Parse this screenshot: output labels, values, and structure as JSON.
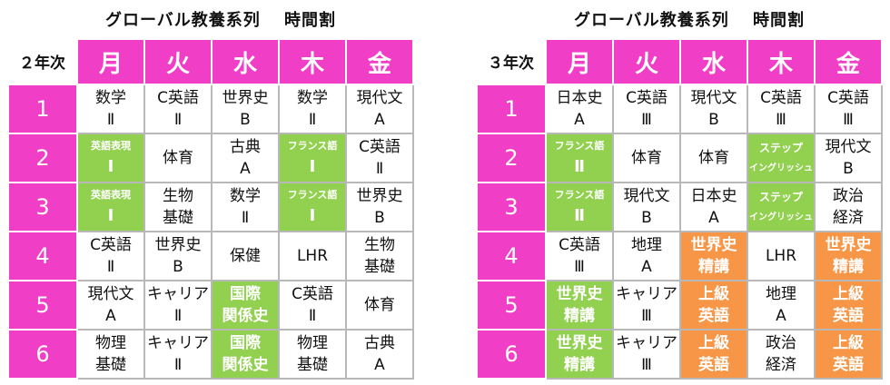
{
  "panels": [
    {
      "title": "グローバル教養系列　 時間割",
      "year": "２年次",
      "days": [
        "月",
        "火",
        "水",
        "木",
        "金"
      ],
      "rows": [
        {
          "period": "1",
          "cells": [
            {
              "l1": "数学",
              "l2": "Ⅱ",
              "style": "plain"
            },
            {
              "l1": "C英語",
              "l2": "Ⅱ",
              "style": "plain"
            },
            {
              "l1": "世界史",
              "l2": "B",
              "style": "plain"
            },
            {
              "l1": "数学",
              "l2": "Ⅱ",
              "style": "plain"
            },
            {
              "l1": "現代文",
              "l2": "A",
              "style": "plain"
            }
          ]
        },
        {
          "period": "2",
          "cells": [
            {
              "l1": "英語表現",
              "l2": "Ⅰ",
              "style": "green-small"
            },
            {
              "l1": "体育",
              "l2": "",
              "style": "plain"
            },
            {
              "l1": "古典",
              "l2": "A",
              "style": "plain"
            },
            {
              "l1": "フランス語",
              "l2": "Ⅰ",
              "style": "green-small"
            },
            {
              "l1": "C英語",
              "l2": "Ⅱ",
              "style": "plain"
            }
          ]
        },
        {
          "period": "3",
          "cells": [
            {
              "l1": "英語表現",
              "l2": "Ⅰ",
              "style": "green-small"
            },
            {
              "l1": "生物",
              "l2": "基礎",
              "style": "plain"
            },
            {
              "l1": "数学",
              "l2": "Ⅱ",
              "style": "plain"
            },
            {
              "l1": "フランス語",
              "l2": "Ⅰ",
              "style": "green-small"
            },
            {
              "l1": "世界史",
              "l2": "B",
              "style": "plain"
            }
          ]
        },
        {
          "period": "4",
          "cells": [
            {
              "l1": "C英語",
              "l2": "Ⅱ",
              "style": "plain"
            },
            {
              "l1": "世界史",
              "l2": "B",
              "style": "plain"
            },
            {
              "l1": "保健",
              "l2": "",
              "style": "plain"
            },
            {
              "l1": "LHR",
              "l2": "",
              "style": "plain"
            },
            {
              "l1": "生物",
              "l2": "基礎",
              "style": "plain"
            }
          ]
        },
        {
          "period": "5",
          "cells": [
            {
              "l1": "現代文",
              "l2": "A",
              "style": "plain"
            },
            {
              "l1": "キャリア",
              "l2": "Ⅱ",
              "style": "plain"
            },
            {
              "l1": "国際",
              "l2": "関係史",
              "style": "green"
            },
            {
              "l1": "C英語",
              "l2": "Ⅱ",
              "style": "plain"
            },
            {
              "l1": "体育",
              "l2": "",
              "style": "plain"
            }
          ]
        },
        {
          "period": "6",
          "cells": [
            {
              "l1": "物理",
              "l2": "基礎",
              "style": "plain"
            },
            {
              "l1": "キャリア",
              "l2": "Ⅱ",
              "style": "plain"
            },
            {
              "l1": "国際",
              "l2": "関係史",
              "style": "green"
            },
            {
              "l1": "物理",
              "l2": "基礎",
              "style": "plain"
            },
            {
              "l1": "古典",
              "l2": "A",
              "style": "plain"
            }
          ]
        }
      ]
    },
    {
      "title": "グローバル教養系列　 時間割",
      "year": "３年次",
      "days": [
        "月",
        "火",
        "水",
        "木",
        "金"
      ],
      "rows": [
        {
          "period": "1",
          "cells": [
            {
              "l1": "日本史",
              "l2": "A",
              "style": "plain"
            },
            {
              "l1": "C英語",
              "l2": "Ⅲ",
              "style": "plain"
            },
            {
              "l1": "現代文",
              "l2": "B",
              "style": "plain"
            },
            {
              "l1": "C英語",
              "l2": "Ⅲ",
              "style": "plain"
            },
            {
              "l1": "C英語",
              "l2": "Ⅲ",
              "style": "plain"
            }
          ]
        },
        {
          "period": "2",
          "cells": [
            {
              "l1": "フランス語",
              "l2": "Ⅱ",
              "style": "green-small"
            },
            {
              "l1": "体育",
              "l2": "",
              "style": "plain"
            },
            {
              "l1": "体育",
              "l2": "",
              "style": "plain"
            },
            {
              "l1": "ステップ",
              "l2": "イングリッシュ",
              "style": "green-tiny"
            },
            {
              "l1": "現代文",
              "l2": "B",
              "style": "plain"
            }
          ]
        },
        {
          "period": "3",
          "cells": [
            {
              "l1": "フランス語",
              "l2": "Ⅱ",
              "style": "green-small"
            },
            {
              "l1": "現代文",
              "l2": "B",
              "style": "plain"
            },
            {
              "l1": "日本史",
              "l2": "A",
              "style": "plain"
            },
            {
              "l1": "ステップ",
              "l2": "イングリッシュ",
              "style": "green-tiny"
            },
            {
              "l1": "政治",
              "l2": "経済",
              "style": "plain"
            }
          ]
        },
        {
          "period": "4",
          "cells": [
            {
              "l1": "C英語",
              "l2": "Ⅲ",
              "style": "plain"
            },
            {
              "l1": "地理",
              "l2": "A",
              "style": "plain"
            },
            {
              "l1": "世界史",
              "l2": "精講",
              "style": "orange"
            },
            {
              "l1": "LHR",
              "l2": "",
              "style": "plain"
            },
            {
              "l1": "世界史",
              "l2": "精講",
              "style": "orange"
            }
          ]
        },
        {
          "period": "5",
          "cells": [
            {
              "l1": "世界史",
              "l2": "精講",
              "style": "green"
            },
            {
              "l1": "キャリア",
              "l2": "Ⅲ",
              "style": "plain"
            },
            {
              "l1": "上級",
              "l2": "英語",
              "style": "orange"
            },
            {
              "l1": "地理",
              "l2": "A",
              "style": "plain"
            },
            {
              "l1": "上級",
              "l2": "英語",
              "style": "orange"
            }
          ]
        },
        {
          "period": "6",
          "cells": [
            {
              "l1": "世界史",
              "l2": "精講",
              "style": "green"
            },
            {
              "l1": "キャリア",
              "l2": "Ⅲ",
              "style": "plain"
            },
            {
              "l1": "上級",
              "l2": "英語",
              "style": "orange"
            },
            {
              "l1": "政治",
              "l2": "経済",
              "style": "plain"
            },
            {
              "l1": "上級",
              "l2": "英語",
              "style": "orange"
            }
          ]
        }
      ]
    }
  ]
}
